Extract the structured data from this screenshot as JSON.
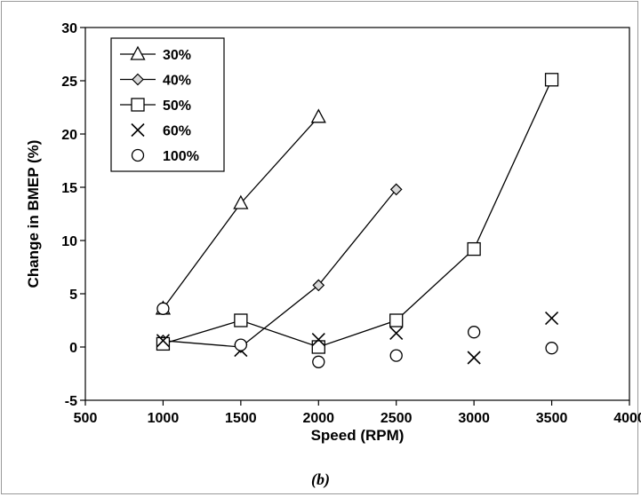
{
  "caption": "(b)",
  "chart_data": {
    "type": "line",
    "xlabel": "Speed (RPM)",
    "ylabel": "Change in BMEP (%)",
    "xlim": [
      500,
      4000
    ],
    "ylim": [
      -5,
      30
    ],
    "x_ticks": [
      "500",
      "1000",
      "1500",
      "2000",
      "2500",
      "3000",
      "3500",
      "4000"
    ],
    "y_ticks": [
      "-5",
      "0",
      "5",
      "10",
      "15",
      "20",
      "25",
      "30"
    ],
    "grid": false,
    "legend_position": "top-left",
    "series": [
      {
        "name": "30%",
        "marker": "triangle",
        "line": true,
        "x": [
          1000,
          1500,
          2000
        ],
        "y": [
          3.6,
          13.5,
          21.6
        ]
      },
      {
        "name": "40%",
        "marker": "diamond",
        "line": true,
        "x": [
          1000,
          1500,
          2000,
          2500
        ],
        "y": [
          0.6,
          0.0,
          5.8,
          14.8
        ]
      },
      {
        "name": "50%",
        "marker": "square",
        "line": true,
        "x": [
          1000,
          1500,
          2000,
          2500,
          3000,
          3500
        ],
        "y": [
          0.3,
          2.5,
          0.0,
          2.5,
          9.2,
          25.1
        ]
      },
      {
        "name": "60%",
        "marker": "x",
        "line": false,
        "x": [
          1000,
          1500,
          2000,
          2500,
          3000,
          3500
        ],
        "y": [
          0.6,
          -0.3,
          0.7,
          1.3,
          -1.0,
          2.7
        ]
      },
      {
        "name": "100%",
        "marker": "circle",
        "line": false,
        "x": [
          1000,
          1500,
          2000,
          2500,
          3000,
          3500
        ],
        "y": [
          3.6,
          0.2,
          -1.4,
          -0.8,
          1.4,
          -0.1
        ]
      }
    ]
  }
}
